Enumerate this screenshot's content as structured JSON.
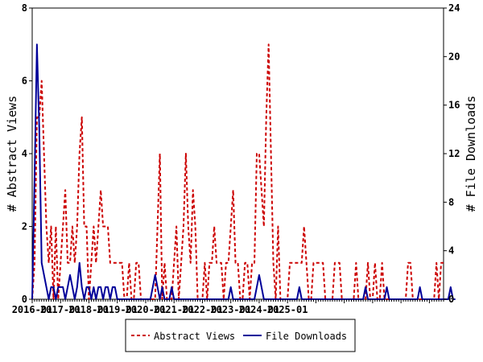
{
  "chart_data": {
    "type": "line",
    "x_start": "2016-01",
    "x_tick_labels": [
      "2016-01",
      "2017-01",
      "2018-01",
      "2019-01",
      "2020-01",
      "2021-01",
      "2022-01",
      "2023-01",
      "2024-01",
      "2025-01"
    ],
    "ylabel_left": "# Abstract Views",
    "ylabel_right": "# File Downloads",
    "ylim_left": [
      0,
      8
    ],
    "ylim_right": [
      0,
      24
    ],
    "yticks_left": [
      "0",
      "2",
      "4",
      "6",
      "8"
    ],
    "yticks_right": [
      "0",
      "4",
      "8",
      "12",
      "16",
      "20",
      "24"
    ],
    "legend_position": "bottom",
    "grid": false,
    "series": [
      {
        "name": "Abstract Views",
        "axis": "left",
        "color": "#cc0000",
        "style": "dashed",
        "values": [
          0,
          1,
          5,
          5,
          6,
          4,
          2,
          1,
          2,
          0,
          2,
          0,
          1,
          2,
          3,
          1,
          1,
          2,
          1,
          2,
          4,
          5,
          2,
          2,
          0,
          1,
          2,
          1,
          2,
          3,
          2,
          2,
          2,
          1,
          1,
          1,
          1,
          1,
          1,
          0,
          0,
          1,
          0,
          0,
          1,
          1,
          0,
          0,
          0,
          0,
          0,
          0,
          0,
          2,
          4,
          0,
          1,
          0,
          0,
          0,
          1,
          2,
          0,
          1,
          2,
          4,
          2,
          1,
          3,
          2,
          0,
          0,
          0,
          1,
          0,
          1,
          1,
          2,
          1,
          1,
          1,
          0,
          1,
          1,
          2,
          3,
          1,
          1,
          0,
          0,
          1,
          1,
          0,
          1,
          1,
          4,
          4,
          3,
          2,
          5,
          7,
          4,
          1,
          0,
          2,
          0,
          0,
          0,
          0,
          1,
          1,
          1,
          1,
          1,
          1,
          2,
          1,
          0,
          0,
          1,
          1,
          1,
          1,
          1,
          0,
          0,
          0,
          0,
          1,
          1,
          1,
          0,
          0,
          0,
          0,
          0,
          0,
          1,
          0,
          0,
          0,
          0,
          1,
          0,
          0,
          1,
          0,
          0,
          1,
          0,
          0,
          0,
          0,
          0,
          0,
          0,
          0,
          0,
          0,
          1,
          1,
          0,
          0,
          0,
          0,
          0,
          0,
          0,
          0,
          0,
          0,
          1,
          0,
          1,
          1
        ]
      },
      {
        "name": "File Downloads",
        "axis": "right",
        "color": "#000099",
        "style": "solid",
        "values": [
          0,
          10,
          21,
          14,
          3,
          2,
          1,
          0,
          1,
          1,
          0,
          1,
          1,
          1,
          0,
          1,
          2,
          1,
          0,
          1,
          3,
          1,
          0,
          1,
          1,
          0,
          1,
          0,
          1,
          1,
          0,
          1,
          1,
          0,
          1,
          1,
          0,
          0,
          0,
          0,
          0,
          0,
          0,
          0,
          0,
          0,
          0,
          0,
          0,
          0,
          0,
          1,
          2,
          1,
          0,
          1,
          0,
          0,
          0,
          1,
          0,
          0,
          0,
          0,
          0,
          0,
          0,
          0,
          0,
          0,
          0,
          0,
          0,
          0,
          0,
          0,
          0,
          0,
          0,
          0,
          0,
          0,
          0,
          0,
          1,
          0,
          0,
          0,
          0,
          0,
          0,
          0,
          0,
          0,
          0,
          1,
          2,
          1,
          0,
          0,
          0,
          0,
          0,
          0,
          0,
          0,
          0,
          0,
          0,
          0,
          0,
          0,
          0,
          1,
          0,
          0,
          0,
          0,
          0,
          0,
          0,
          0,
          0,
          0,
          0,
          0,
          0,
          0,
          0,
          0,
          0,
          0,
          0,
          0,
          0,
          0,
          0,
          0,
          0,
          0,
          0,
          1,
          0,
          0,
          0,
          0,
          0,
          0,
          0,
          0,
          1,
          0,
          0,
          0,
          0,
          0,
          0,
          0,
          0,
          0,
          0,
          0,
          0,
          0,
          1,
          0,
          0,
          0,
          0,
          0,
          0,
          0,
          0,
          0,
          0,
          0,
          0,
          1,
          0,
          0
        ]
      }
    ]
  }
}
